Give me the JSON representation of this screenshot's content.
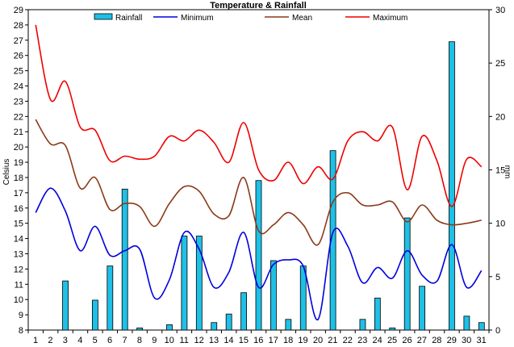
{
  "chart_data": {
    "type": "bar+line",
    "title": "Temperature & Rainfall",
    "ylabel_left": "Celsius",
    "ylabel_right": "mm",
    "ylim_left": [
      8,
      29
    ],
    "ylim_right": [
      0,
      30
    ],
    "x": [
      1,
      2,
      3,
      4,
      5,
      6,
      7,
      8,
      9,
      10,
      11,
      12,
      13,
      14,
      15,
      16,
      17,
      18,
      19,
      20,
      21,
      22,
      23,
      24,
      25,
      26,
      27,
      28,
      29,
      30,
      31
    ],
    "legend_position": "top",
    "series": [
      {
        "name": "Rainfall",
        "type": "bar",
        "axis": "right",
        "color": "#1ec0e6",
        "values": [
          0,
          0,
          4.6,
          0,
          2.8,
          6.0,
          13.2,
          0.2,
          0,
          0.5,
          8.8,
          8.8,
          0.7,
          1.5,
          3.5,
          14.0,
          6.5,
          1.0,
          6.0,
          0,
          16.8,
          0,
          1.0,
          3.0,
          0.2,
          10.5,
          4.1,
          0,
          27.0,
          1.3,
          0.7
        ]
      },
      {
        "name": "Minimum",
        "type": "line",
        "axis": "left",
        "color": "#0000dd",
        "values": [
          15.7,
          17.3,
          15.8,
          13.2,
          14.8,
          12.9,
          13.2,
          13.3,
          10.1,
          11.3,
          14.4,
          13.3,
          10.8,
          11.8,
          14.4,
          10.8,
          12.3,
          12.6,
          12.2,
          8.7,
          14.4,
          13.5,
          11.1,
          12.1,
          11.4,
          13.2,
          11.6,
          11.2,
          13.6,
          10.8,
          11.9
        ]
      },
      {
        "name": "Mean",
        "type": "line",
        "axis": "left",
        "color": "#8b3a1a",
        "values": [
          21.8,
          20.2,
          20.1,
          17.3,
          18.0,
          15.9,
          16.3,
          16.1,
          14.8,
          16.3,
          17.4,
          17.1,
          15.6,
          15.5,
          18.0,
          14.5,
          14.9,
          15.7,
          14.9,
          13.6,
          16.4,
          17.0,
          16.2,
          16.2,
          16.4,
          15.1,
          16.2,
          15.2,
          14.9,
          15.0,
          15.2
        ]
      },
      {
        "name": "Maximum",
        "type": "line",
        "axis": "left",
        "color": "#ee0000",
        "values": [
          28.0,
          23.1,
          24.3,
          21.3,
          21.1,
          19.1,
          19.4,
          19.2,
          19.4,
          20.7,
          20.4,
          21.1,
          20.3,
          19.0,
          21.6,
          18.5,
          17.8,
          19.0,
          17.6,
          18.7,
          17.9,
          20.4,
          21.0,
          20.4,
          21.3,
          17.2,
          20.7,
          19.1,
          16.1,
          19.2,
          18.7
        ]
      }
    ]
  }
}
